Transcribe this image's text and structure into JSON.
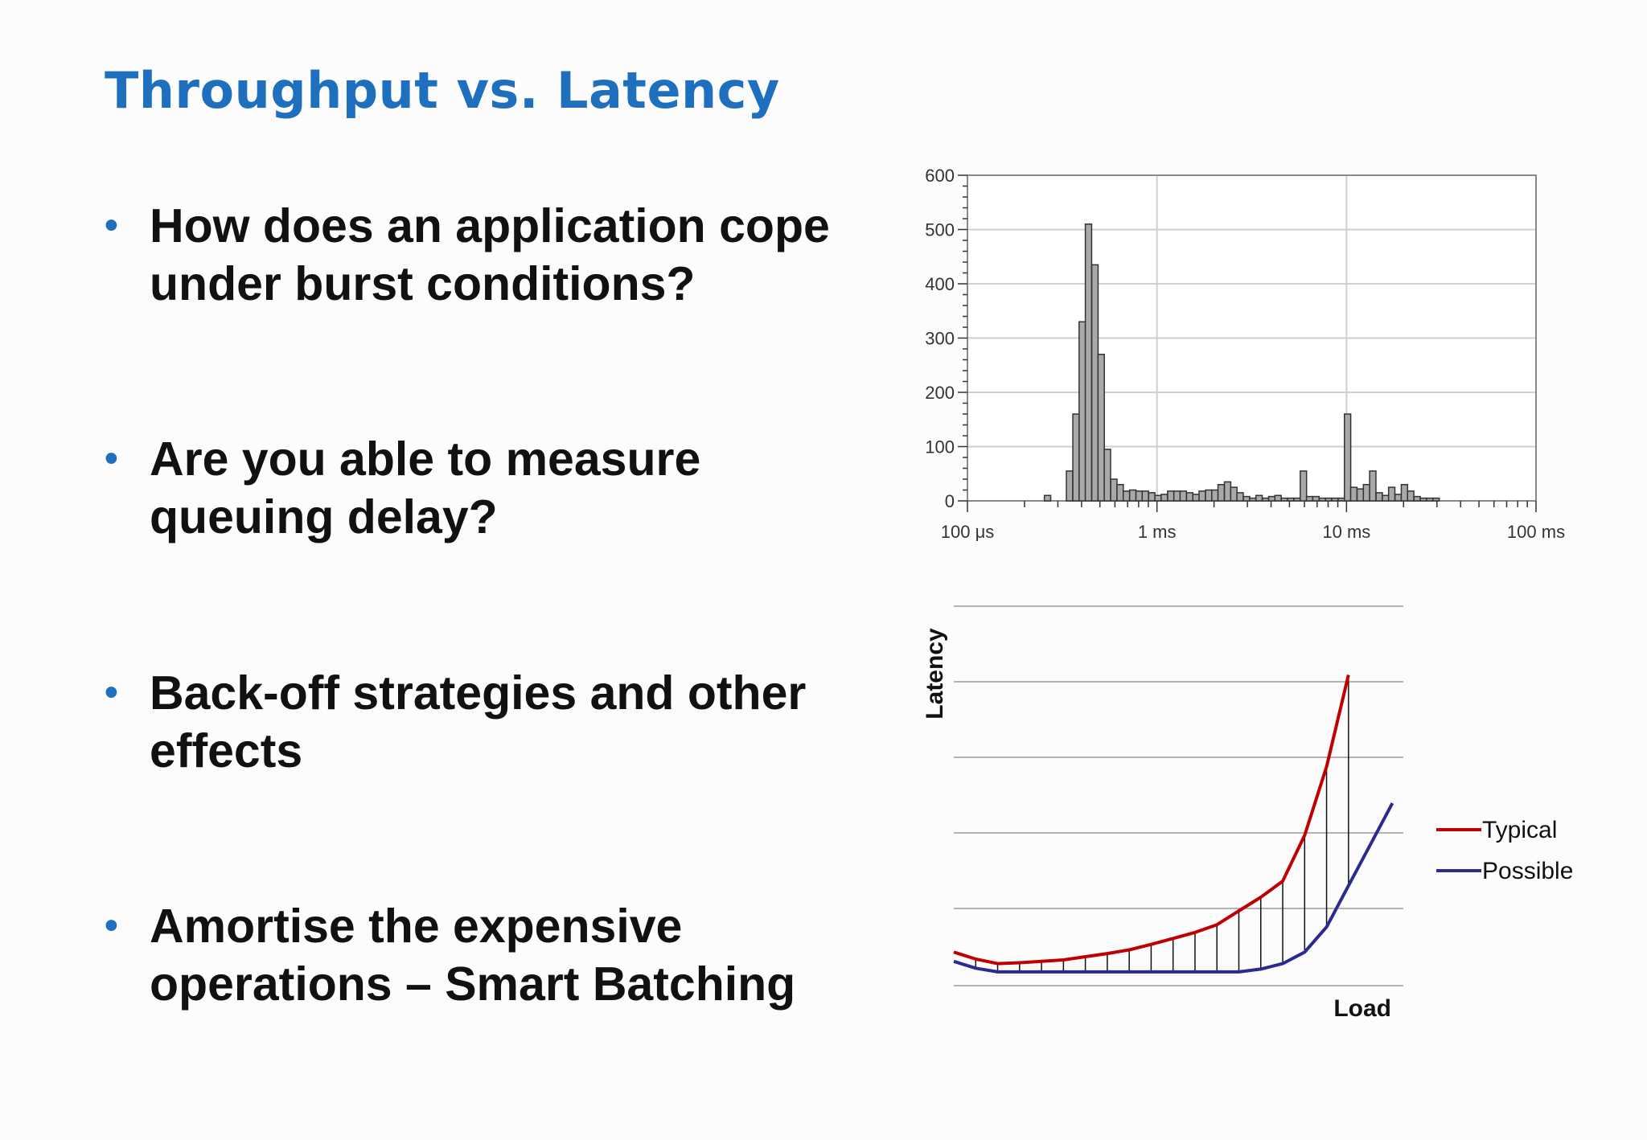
{
  "slide": {
    "title": "Throughput vs. Latency",
    "bullets": [
      {
        "line1": "How does an application cope",
        "line2": "under burst conditions?"
      },
      {
        "line1": "Are you able to measure",
        "line2": "queuing delay?"
      },
      {
        "line1": "Back-off strategies and other",
        "line2": "effects"
      },
      {
        "line1": "Amortise the expensive",
        "line2": "operations – Smart Batching"
      }
    ],
    "bullet_marker": "•",
    "colors": {
      "title": "#1f6fbf",
      "bullet_marker": "#1f6fbf",
      "text": "#111111"
    }
  },
  "chart_data": [
    {
      "type": "bar",
      "xscale": "log",
      "xlim_seconds": [
        0.0001,
        0.1
      ],
      "ylim": [
        0,
        600
      ],
      "yticks": [
        0,
        100,
        200,
        300,
        400,
        500,
        600
      ],
      "ytick_labels": [
        "0",
        "100",
        "200",
        "300",
        "400",
        "500",
        "600"
      ],
      "xtick_labels": [
        "100 μs",
        "1 ms",
        "10 ms",
        "100 ms"
      ],
      "grid": true,
      "title": "",
      "xlabel": "",
      "ylabel": "",
      "bins_log10_seconds_start": [
        -3.594,
        -3.478,
        -3.444,
        -3.411,
        -3.378,
        -3.344,
        -3.311,
        -3.278,
        -3.244,
        -3.211,
        -3.178,
        -3.144,
        -3.111,
        -3.078,
        -3.044,
        -3.011,
        -2.978,
        -2.944,
        -2.911,
        -2.878,
        -2.844,
        -2.811,
        -2.778,
        -2.744,
        -2.711,
        -2.678,
        -2.644,
        -2.611,
        -2.578,
        -2.544,
        -2.511,
        -2.478,
        -2.444,
        -2.411,
        -2.378,
        -2.344,
        -2.311,
        -2.278,
        -2.244,
        -2.211,
        -2.178,
        -2.144,
        -2.111,
        -2.078,
        -2.044,
        -2.011,
        -1.978,
        -1.944,
        -1.911,
        -1.878,
        -1.844,
        -1.811,
        -1.778,
        -1.744,
        -1.711,
        -1.678,
        -1.644,
        -1.611,
        -1.578,
        -1.544,
        -1.511,
        -1.478,
        -1.444,
        -1.411,
        -1.378,
        -1.344,
        -1.311,
        -1.278,
        -1.244,
        -1.211
      ],
      "bin_width_log10": 0.0333,
      "counts": [
        10,
        55,
        160,
        330,
        510,
        435,
        270,
        95,
        40,
        30,
        18,
        20,
        18,
        18,
        15,
        10,
        12,
        18,
        18,
        18,
        15,
        12,
        18,
        20,
        20,
        30,
        35,
        25,
        15,
        8,
        5,
        10,
        5,
        8,
        10,
        5,
        5,
        5,
        55,
        8,
        8,
        5,
        5,
        5,
        5,
        160,
        25,
        22,
        30,
        55,
        15,
        10,
        25,
        12,
        30,
        18,
        8,
        5,
        5,
        5,
        0,
        0,
        0,
        0,
        0,
        0,
        0,
        0,
        0,
        0
      ]
    },
    {
      "type": "line",
      "xlabel": "Load",
      "ylabel": "Latency",
      "legend_position": "right",
      "series": [
        {
          "name": "Typical",
          "color": "#c00000",
          "x": [
            0,
            1,
            2,
            3,
            4,
            5,
            6,
            7,
            8,
            9,
            10,
            11,
            12,
            13,
            14,
            15,
            16,
            17,
            18
          ],
          "y": [
            0.45,
            0.3,
            0.2,
            0.22,
            0.25,
            0.28,
            0.35,
            0.42,
            0.5,
            0.62,
            0.75,
            0.88,
            1.05,
            1.35,
            1.65,
            2.0,
            3.0,
            4.5,
            6.5
          ]
        },
        {
          "name": "Possible",
          "color": "#2b2b8f",
          "x": [
            0,
            1,
            2,
            3,
            4,
            5,
            6,
            7,
            8,
            9,
            10,
            11,
            12,
            13,
            14,
            15,
            16,
            17,
            18,
            19,
            20
          ],
          "y": [
            0.25,
            0.1,
            0.02,
            0.02,
            0.02,
            0.02,
            0.02,
            0.02,
            0.02,
            0.02,
            0.02,
            0.02,
            0.02,
            0.02,
            0.08,
            0.2,
            0.45,
            1.0,
            1.9,
            2.8,
            3.7
          ]
        }
      ],
      "shaded_gap": "vertical hatch lines between Typical and Possible",
      "grid": "horizontal lines",
      "ylim": [
        0,
        8
      ],
      "xlim": [
        0,
        20.5
      ]
    }
  ]
}
